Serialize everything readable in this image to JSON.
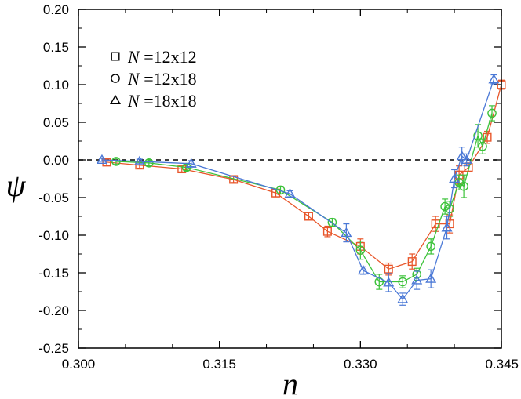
{
  "chart_data": {
    "type": "scatter",
    "title": "",
    "xlabel": "n",
    "ylabel": "ψ",
    "xlim": [
      0.3,
      0.345
    ],
    "ylim": [
      -0.25,
      0.2
    ],
    "xticks": [
      "0.300",
      "0.315",
      "0.330",
      "0.345"
    ],
    "xtick_values": [
      0.3,
      0.315,
      0.33,
      0.345
    ],
    "yticks": [
      "0.20",
      "0.15",
      "0.10",
      "0.05",
      "0.00",
      "-0.05",
      "-0.10",
      "-0.15",
      "-0.20",
      "-0.25"
    ],
    "ytick_values": [
      0.2,
      0.15,
      0.1,
      0.05,
      0.0,
      -0.05,
      -0.1,
      -0.15,
      -0.2,
      -0.25
    ],
    "reference_line": {
      "y": 0.0,
      "style": "dashed"
    },
    "legend_position": "top-left",
    "series": [
      {
        "name": "N =12x12",
        "legend_symbol": "N",
        "legend_rest": " =12x12",
        "marker": "square",
        "color": "#e8562a",
        "x": [
          0.303,
          0.3065,
          0.311,
          0.3165,
          0.321,
          0.3245,
          0.3265,
          0.33,
          0.333,
          0.3355,
          0.338,
          0.3395,
          0.3405,
          0.3415,
          0.3435,
          0.345
        ],
        "y": [
          -0.003,
          -0.007,
          -0.012,
          -0.026,
          -0.044,
          -0.075,
          -0.095,
          -0.115,
          -0.145,
          -0.135,
          -0.085,
          -0.085,
          -0.02,
          -0.01,
          0.03,
          0.1
        ],
        "err": [
          0.004,
          0.004,
          0.004,
          0.004,
          0.005,
          0.005,
          0.007,
          0.01,
          0.008,
          0.01,
          0.01,
          0.012,
          0.012,
          0.006,
          0.008,
          0.006
        ]
      },
      {
        "name": "N =12x18",
        "legend_symbol": "N",
        "legend_rest": " =12x18",
        "marker": "circle",
        "color": "#3cc23a",
        "x": [
          0.304,
          0.3075,
          0.3115,
          0.3215,
          0.327,
          0.33,
          0.332,
          0.3345,
          0.336,
          0.3375,
          0.339,
          0.3395,
          0.3405,
          0.341,
          0.3425,
          0.343,
          0.344
        ],
        "y": [
          -0.002,
          -0.004,
          -0.01,
          -0.04,
          -0.083,
          -0.12,
          -0.162,
          -0.162,
          -0.152,
          -0.115,
          -0.062,
          -0.065,
          -0.03,
          -0.035,
          0.032,
          0.018,
          0.062
        ],
        "err": [
          0.004,
          0.004,
          0.004,
          0.005,
          0.005,
          0.012,
          0.01,
          0.008,
          0.008,
          0.01,
          0.01,
          0.01,
          0.01,
          0.015,
          0.015,
          0.01,
          0.01
        ]
      },
      {
        "name": "N =18x18",
        "legend_symbol": "N",
        "legend_rest": " =18x18",
        "marker": "triangle",
        "color": "#4a78d6",
        "x": [
          0.3025,
          0.3065,
          0.312,
          0.3225,
          0.3285,
          0.3303,
          0.333,
          0.3345,
          0.336,
          0.3375,
          0.3392,
          0.34,
          0.3408,
          0.3413,
          0.3442
        ],
        "y": [
          0.0,
          -0.002,
          -0.005,
          -0.045,
          -0.097,
          -0.147,
          -0.163,
          -0.185,
          -0.16,
          -0.158,
          -0.09,
          -0.025,
          0.005,
          0.0,
          0.107
        ],
        "err": [
          0.002,
          0.003,
          0.004,
          0.004,
          0.012,
          0.005,
          0.012,
          0.008,
          0.012,
          0.012,
          0.015,
          0.012,
          0.012,
          0.008,
          0.006
        ]
      }
    ]
  }
}
